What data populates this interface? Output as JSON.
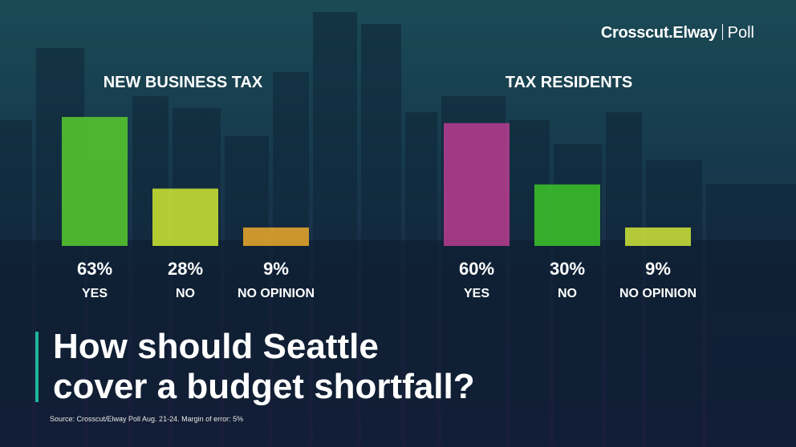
{
  "brand": {
    "name": "Crosscut.Elway",
    "suffix": "Poll"
  },
  "headline": {
    "line1": "How should Seattle",
    "line2": "cover a budget shortfall?"
  },
  "source": "Source: Crosscut/Elway Poll Aug. 21-24. Margin of error: 5%",
  "chart_data": [
    {
      "type": "bar",
      "title": "NEW BUSINESS TAX",
      "categories": [
        "YES",
        "NO",
        "NO OPINION"
      ],
      "values": [
        63,
        28,
        9
      ],
      "value_labels": [
        "63%",
        "28%",
        "9%"
      ],
      "colors": [
        "#56c62d",
        "#cbe233",
        "#e5a52b"
      ],
      "ylim": [
        0,
        63
      ]
    },
    {
      "type": "bar",
      "title": "TAX RESIDENTS",
      "categories": [
        "YES",
        "NO",
        "NO OPINION"
      ],
      "values": [
        60,
        30,
        9
      ],
      "value_labels": [
        "60%",
        "30%",
        "9%"
      ],
      "colors": [
        "#b43c8e",
        "#3cbf2a",
        "#c9df38"
      ],
      "ylim": [
        0,
        63
      ]
    }
  ]
}
